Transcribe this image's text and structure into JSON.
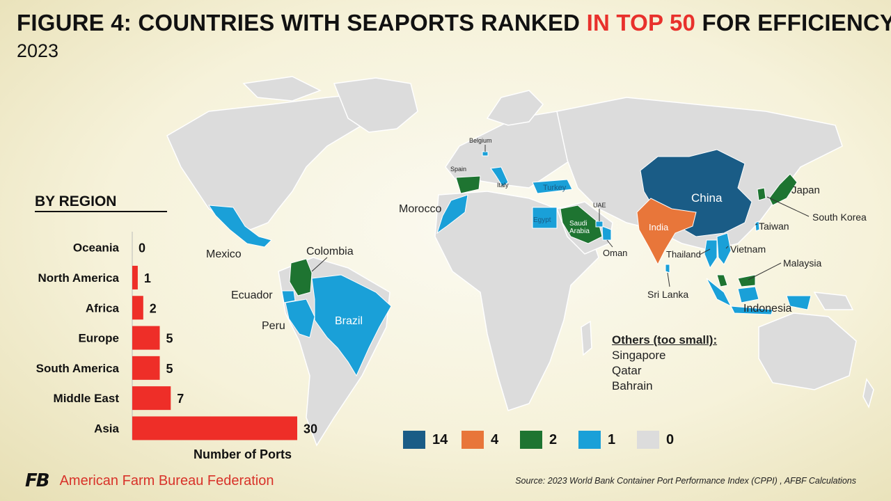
{
  "title": {
    "prefix": "FIGURE 4: COUNTRIES WITH SEAPORTS RANKED ",
    "highlight": "IN TOP 50",
    "suffix": " FOR EFFICIENCY",
    "subtitle": "2023"
  },
  "colors": {
    "c14": "#1a5c86",
    "c4": "#e8763a",
    "c2": "#1e7431",
    "c1": "#1aa0d8",
    "c0": "#dcdcdc",
    "bar": "#ee2e28",
    "accent": "#e8312c"
  },
  "chart_data": [
    {
      "type": "bar",
      "orientation": "horizontal",
      "title": "BY REGION",
      "xlabel": "Number of Ports",
      "categories": [
        "Oceania",
        "North America",
        "Africa",
        "Europe",
        "South America",
        "Middle East",
        "Asia"
      ],
      "values": [
        0,
        1,
        2,
        5,
        5,
        7,
        30
      ],
      "xlim": [
        0,
        30
      ]
    },
    {
      "type": "choropleth",
      "legend": [
        {
          "label": "14",
          "color": "#1a5c86"
        },
        {
          "label": "4",
          "color": "#e8763a"
        },
        {
          "label": "2",
          "color": "#1e7431"
        },
        {
          "label": "1",
          "color": "#1aa0d8"
        },
        {
          "label": "0",
          "color": "#dcdcdc"
        }
      ],
      "countries": [
        {
          "name": "China",
          "value": 14
        },
        {
          "name": "India",
          "value": 4
        },
        {
          "name": "Japan",
          "value": 2
        },
        {
          "name": "South Korea",
          "value": 2
        },
        {
          "name": "Malaysia",
          "value": 2
        },
        {
          "name": "Saudi Arabia",
          "value": 2
        },
        {
          "name": "Spain",
          "value": 2
        },
        {
          "name": "Colombia",
          "value": 2
        },
        {
          "name": "Taiwan",
          "value": 1
        },
        {
          "name": "Vietnam",
          "value": 1
        },
        {
          "name": "Thailand",
          "value": 1
        },
        {
          "name": "Indonesia",
          "value": 1
        },
        {
          "name": "Sri Lanka",
          "value": 1
        },
        {
          "name": "Oman",
          "value": 1
        },
        {
          "name": "UAE",
          "value": 1
        },
        {
          "name": "Egypt",
          "value": 1
        },
        {
          "name": "Turkey",
          "value": 1
        },
        {
          "name": "Italy",
          "value": 1
        },
        {
          "name": "Belgium",
          "value": 1
        },
        {
          "name": "Morocco",
          "value": 1
        },
        {
          "name": "Mexico",
          "value": 1
        },
        {
          "name": "Ecuador",
          "value": 1
        },
        {
          "name": "Peru",
          "value": 1
        },
        {
          "name": "Brazil",
          "value": 1
        }
      ]
    }
  ],
  "others": {
    "heading": "Others (too small):",
    "items": [
      "Singapore",
      "Qatar",
      "Bahrain"
    ]
  },
  "footer": {
    "logo_mark": "FB",
    "org": "American Farm Bureau Federation",
    "source": "Source: 2023 World Bank Container Port Performance Index (CPPI) , AFBF Calculations"
  }
}
